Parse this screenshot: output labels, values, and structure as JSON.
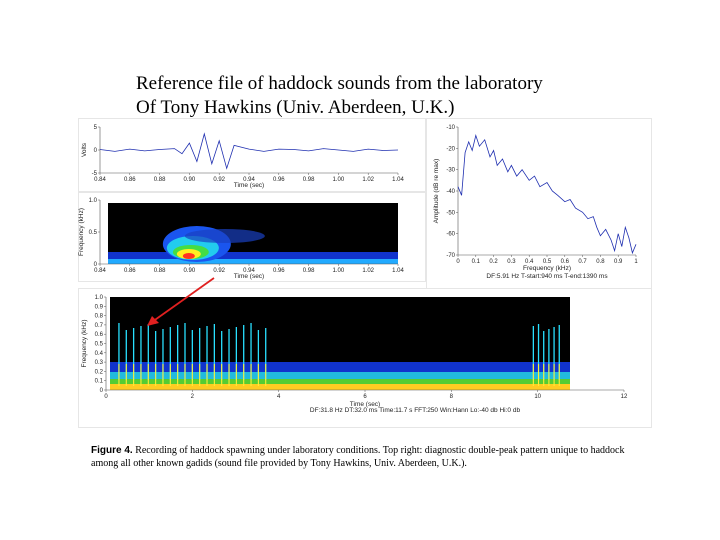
{
  "slide": {
    "title_line1": "Reference file of haddock sounds from the laboratory",
    "title_line2": "Of Tony Hawkins (Univ. Aberdeen, U.K.)"
  },
  "caption": {
    "label": "Figure 4.",
    "text": "Recording of haddock spawning under laboratory conditions.  Top right: diagnostic double-peak pattern unique to haddock among all other known gadids (sound file provided by Tony Hawkins, Univ. Aberdeen, U.K.)."
  },
  "colors": {
    "trace": "#1f2fb0",
    "spectrogram_bg": "#000000",
    "arrow": "#e02020",
    "frame": "#e6e6e6"
  },
  "chart_data": [
    {
      "id": "waveform",
      "type": "line",
      "ylabel": "Volts",
      "xlabel": "Time (sec)",
      "xlim": [
        0.84,
        1.04
      ],
      "ylim": [
        -5,
        5
      ],
      "x_ticks": [
        "0.84",
        "0.86",
        "0.88",
        "0.90",
        "0.92",
        "0.94",
        "0.96",
        "0.98",
        "1.00",
        "1.02",
        "1.04"
      ],
      "y_ticks": [
        "5",
        "0",
        "-5"
      ],
      "x": [
        0.84,
        0.85,
        0.86,
        0.87,
        0.88,
        0.89,
        0.895,
        0.9,
        0.905,
        0.91,
        0.915,
        0.92,
        0.925,
        0.93,
        0.94,
        0.95,
        0.96,
        0.97,
        0.98,
        0.99,
        1.0,
        1.01,
        1.02,
        1.03,
        1.04
      ],
      "y": [
        0.1,
        -0.3,
        0.2,
        -0.2,
        0.1,
        0.3,
        -0.8,
        1.5,
        -2.5,
        3.5,
        -3.0,
        2.0,
        -4.0,
        1.0,
        0.2,
        -0.3,
        0.2,
        0.1,
        -0.2,
        0.3,
        0.0,
        -0.3,
        0.2,
        -0.1,
        0.0
      ]
    },
    {
      "id": "spectrum",
      "type": "line",
      "ylabel": "Amplitude (dB re max)",
      "xlabel": "Frequency (kHz)",
      "xlim": [
        0,
        1
      ],
      "ylim": [
        -70,
        -10
      ],
      "x_ticks": [
        "0",
        "0.1",
        "0.2",
        "0.3",
        "0.4",
        "0.5",
        "0.6",
        "0.7",
        "0.8",
        "0.9",
        "1"
      ],
      "y_ticks": [
        "-10",
        "-20",
        "-30",
        "-40",
        "-50",
        "-60",
        "-70"
      ],
      "x": [
        0.0,
        0.02,
        0.04,
        0.06,
        0.08,
        0.1,
        0.12,
        0.15,
        0.18,
        0.2,
        0.22,
        0.25,
        0.28,
        0.3,
        0.33,
        0.36,
        0.4,
        0.43,
        0.46,
        0.5,
        0.53,
        0.56,
        0.6,
        0.63,
        0.66,
        0.7,
        0.73,
        0.76,
        0.78,
        0.8,
        0.83,
        0.86,
        0.88,
        0.9,
        0.92,
        0.94,
        0.96,
        0.98,
        1.0
      ],
      "y": [
        -38,
        -42,
        -22,
        -17,
        -21,
        -14,
        -19,
        -16,
        -24,
        -21,
        -28,
        -25,
        -31,
        -28,
        -33,
        -30,
        -35,
        -33,
        -38,
        -36,
        -40,
        -42,
        -45,
        -44,
        -48,
        -50,
        -53,
        -52,
        -57,
        -61,
        -58,
        -63,
        -68,
        -60,
        -66,
        -57,
        -62,
        -69,
        -65
      ],
      "info": "DF:5.91 Hz    T-start:940 ms    T-end:1390 ms"
    },
    {
      "id": "spectrogram_short",
      "type": "heatmap",
      "ylabel": "Frequency (kHz)",
      "xlabel": "Time (sec)",
      "xlim": [
        0.84,
        1.04
      ],
      "ylim": [
        0,
        1.0
      ],
      "x_ticks": [
        "0.84",
        "0.86",
        "0.88",
        "0.90",
        "0.92",
        "0.94",
        "0.96",
        "0.98",
        "1.00",
        "1.02",
        "1.04"
      ],
      "y_ticks": [
        "1.0",
        "0.5",
        "0"
      ]
    },
    {
      "id": "spectrogram_long",
      "type": "heatmap",
      "ylabel": "Frequency (kHz)",
      "xlabel": "Time (sec)",
      "xlim": [
        0,
        12
      ],
      "ylim": [
        0,
        1.0
      ],
      "x_ticks": [
        "0",
        "2",
        "4",
        "6",
        "8",
        "10",
        "12"
      ],
      "y_ticks": [
        "1.0",
        "0.9",
        "0.8",
        "0.7",
        "0.6",
        "0.5",
        "0.4",
        "0.3",
        "0.2",
        "0.1",
        "0"
      ],
      "info": "DF:31.8 Hz    DT:32.0 ms    Time:11.7 s    FFT:250    Win:Hann    Lo:-40 db    Hi:0 db"
    }
  ]
}
